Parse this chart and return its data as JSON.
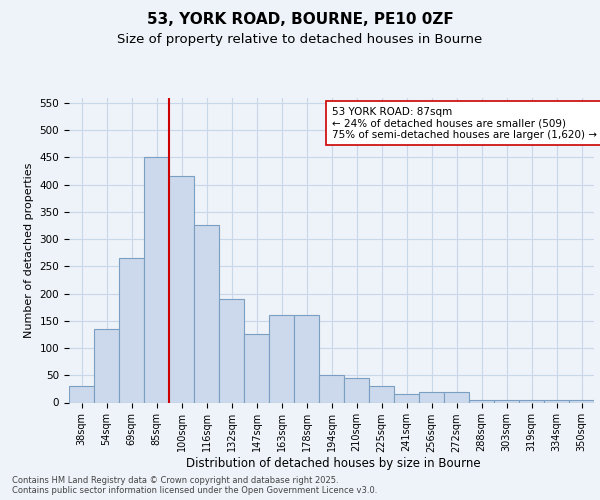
{
  "title1": "53, YORK ROAD, BOURNE, PE10 0ZF",
  "title2": "Size of property relative to detached houses in Bourne",
  "xlabel": "Distribution of detached houses by size in Bourne",
  "ylabel": "Number of detached properties",
  "bar_color": "#ccd9ec",
  "bar_edge_color": "#7a9fc2",
  "grid_color": "#c8d8e8",
  "vline_color": "#cc0000",
  "vline_x": 3.5,
  "annotation_text": "53 YORK ROAD: 87sqm\n← 24% of detached houses are smaller (509)\n75% of semi-detached houses are larger (1,620) →",
  "categories": [
    "38sqm",
    "54sqm",
    "69sqm",
    "85sqm",
    "100sqm",
    "116sqm",
    "132sqm",
    "147sqm",
    "163sqm",
    "178sqm",
    "194sqm",
    "210sqm",
    "225sqm",
    "241sqm",
    "256sqm",
    "272sqm",
    "288sqm",
    "303sqm",
    "319sqm",
    "334sqm",
    "350sqm"
  ],
  "values": [
    30,
    135,
    265,
    450,
    415,
    325,
    190,
    125,
    160,
    160,
    50,
    45,
    30,
    15,
    20,
    20,
    5,
    5,
    5,
    5,
    5
  ],
  "ylim": [
    0,
    560
  ],
  "yticks": [
    0,
    50,
    100,
    150,
    200,
    250,
    300,
    350,
    400,
    450,
    500,
    550
  ],
  "footer": "Contains HM Land Registry data © Crown copyright and database right 2025.\nContains public sector information licensed under the Open Government Licence v3.0.",
  "bg_color": "#eef2f9"
}
